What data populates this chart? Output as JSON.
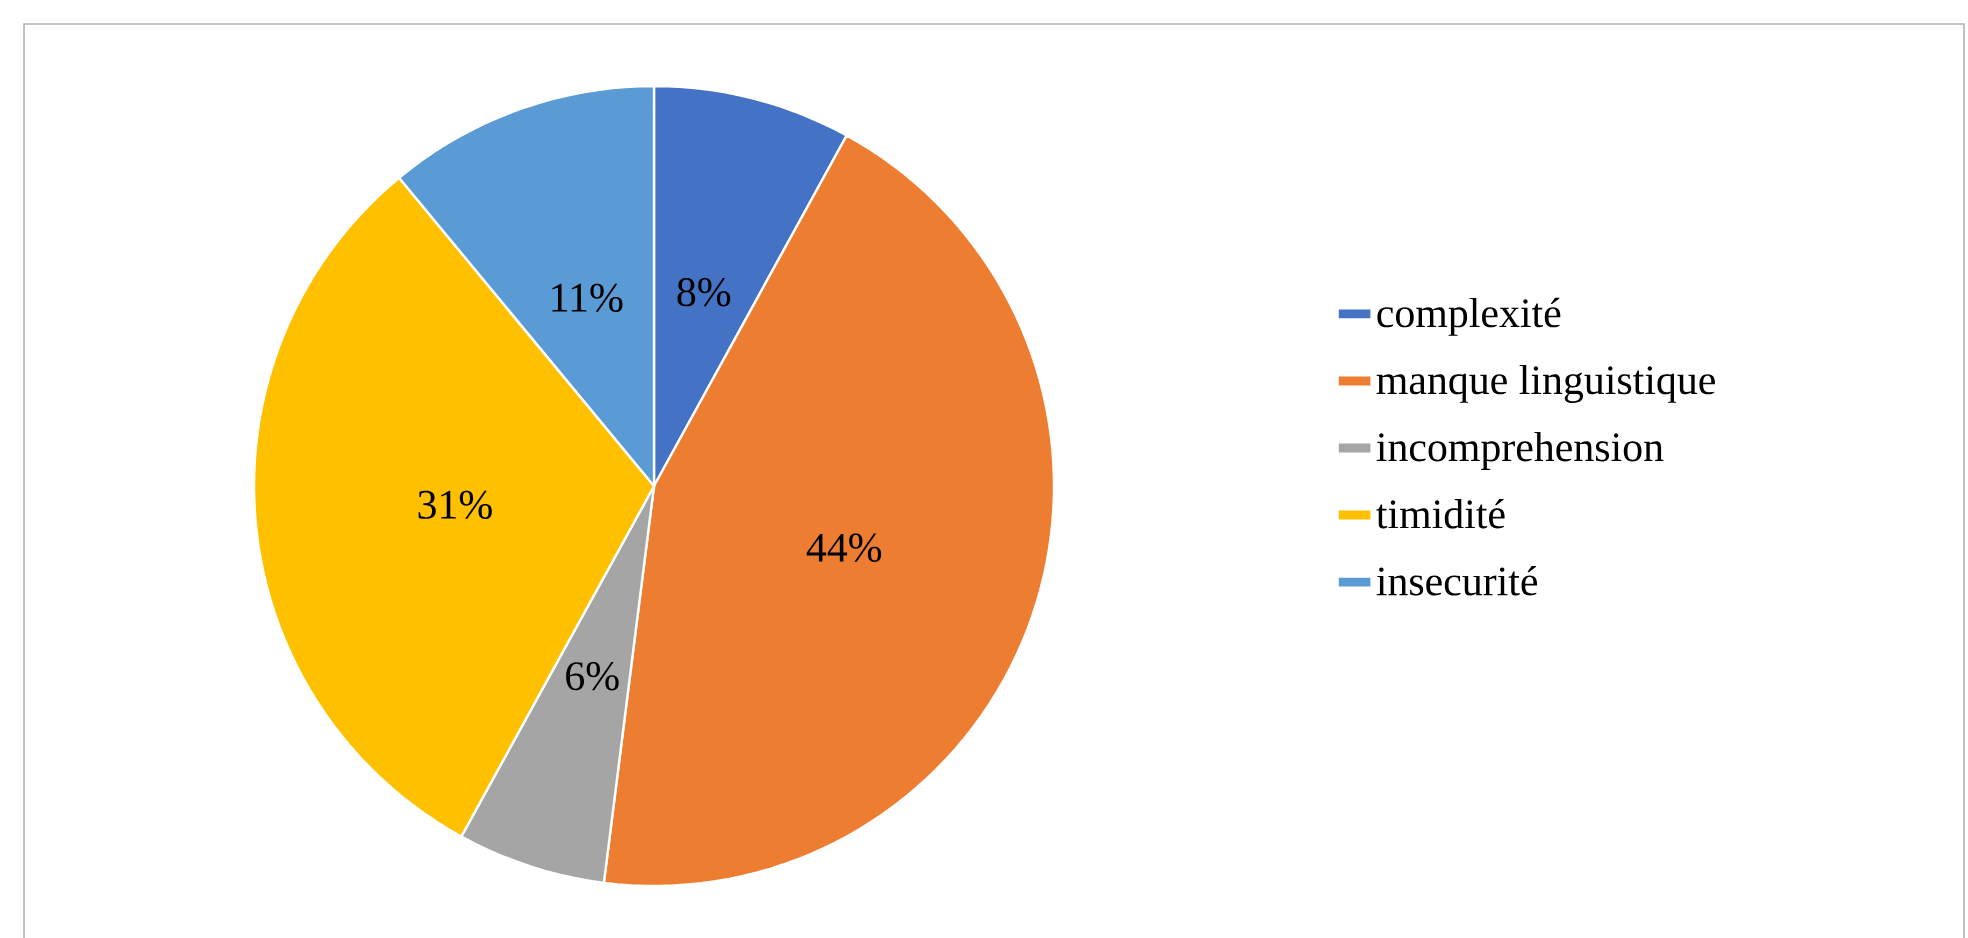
{
  "chart_data": {
    "type": "pie",
    "categories": [
      "complexité",
      "manque linguistique",
      "incomprehension",
      "timidité",
      "insecurité"
    ],
    "values": [
      8,
      44,
      6,
      31,
      11
    ],
    "colors": [
      "#4472c4",
      "#ed7d31",
      "#a5a5a5",
      "#ffc000",
      "#5b9bd5"
    ],
    "value_labels": [
      "8%",
      "44%",
      "6%",
      "31%",
      "11%"
    ],
    "legend": "right"
  }
}
